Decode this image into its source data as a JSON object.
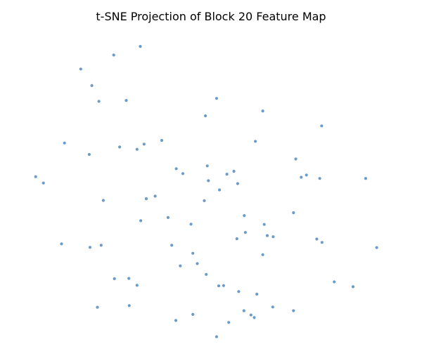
{
  "chart_data": {
    "type": "scatter",
    "title": "t-SNE Projection of Block 20 Feature Map",
    "xlabel": "",
    "ylabel": "",
    "axes_visible": false,
    "grid": false,
    "legend": "none",
    "xlim": [
      0,
      100
    ],
    "ylim": [
      0,
      100
    ],
    "point_color": "#6b9bc8",
    "points": [
      [
        14.8,
        90.1
      ],
      [
        23.7,
        95.0
      ],
      [
        30.9,
        98.0
      ],
      [
        17.8,
        84.3
      ],
      [
        19.7,
        78.8
      ],
      [
        27.1,
        79.1
      ],
      [
        51.5,
        79.8
      ],
      [
        64.0,
        75.4
      ],
      [
        48.5,
        73.7
      ],
      [
        79.9,
        70.2
      ],
      [
        10.4,
        64.2
      ],
      [
        31.9,
        63.8
      ],
      [
        25.3,
        62.8
      ],
      [
        30.0,
        62.0
      ],
      [
        36.7,
        65.1
      ],
      [
        62.0,
        64.8
      ],
      [
        17.1,
        60.2
      ],
      [
        2.6,
        52.4
      ],
      [
        4.7,
        50.2
      ],
      [
        49.0,
        56.2
      ],
      [
        40.6,
        55.2
      ],
      [
        54.3,
        53.3
      ],
      [
        52.3,
        47.8
      ],
      [
        57.2,
        50.0
      ],
      [
        72.9,
        58.6
      ],
      [
        75.8,
        53.0
      ],
      [
        79.4,
        51.8
      ],
      [
        74.4,
        52.2
      ],
      [
        49.3,
        51.0
      ],
      [
        48.2,
        44.0
      ],
      [
        34.9,
        45.6
      ],
      [
        32.5,
        44.7
      ],
      [
        91.8,
        51.8
      ],
      [
        20.9,
        44.1
      ],
      [
        72.3,
        39.8
      ],
      [
        59.0,
        38.8
      ],
      [
        31.0,
        37.0
      ],
      [
        38.4,
        38.1
      ],
      [
        44.6,
        35.8
      ],
      [
        64.4,
        35.7
      ],
      [
        59.3,
        32.9
      ],
      [
        78.6,
        30.6
      ],
      [
        66.8,
        31.4
      ],
      [
        57.0,
        30.7
      ],
      [
        65.2,
        31.8
      ],
      [
        80.0,
        29.4
      ],
      [
        94.8,
        27.6
      ],
      [
        9.6,
        28.9
      ],
      [
        17.3,
        27.7
      ],
      [
        45.1,
        25.6
      ],
      [
        39.4,
        28.4
      ],
      [
        41.7,
        21.2
      ],
      [
        46.3,
        22.0
      ],
      [
        48.7,
        18.2
      ],
      [
        23.9,
        16.7
      ],
      [
        27.8,
        16.8
      ],
      [
        30.0,
        14.4
      ],
      [
        52.1,
        14.2
      ],
      [
        53.4,
        14.3
      ],
      [
        57.5,
        12.2
      ],
      [
        62.4,
        11.3
      ],
      [
        88.4,
        13.9
      ],
      [
        66.7,
        6.8
      ],
      [
        60.8,
        4.0
      ],
      [
        72.3,
        5.5
      ],
      [
        19.3,
        6.7
      ],
      [
        27.9,
        7.3
      ],
      [
        45.1,
        4.2
      ],
      [
        54.8,
        1.4
      ],
      [
        61.7,
        3.1
      ],
      [
        51.5,
        -3.6
      ],
      [
        64.0,
        25.1
      ],
      [
        40.5,
        2.1
      ],
      [
        58.9,
        5.5
      ],
      [
        83.3,
        15.6
      ],
      [
        56.2,
        54.3
      ],
      [
        42.4,
        53.5
      ],
      [
        20.3,
        28.4
      ]
    ]
  }
}
